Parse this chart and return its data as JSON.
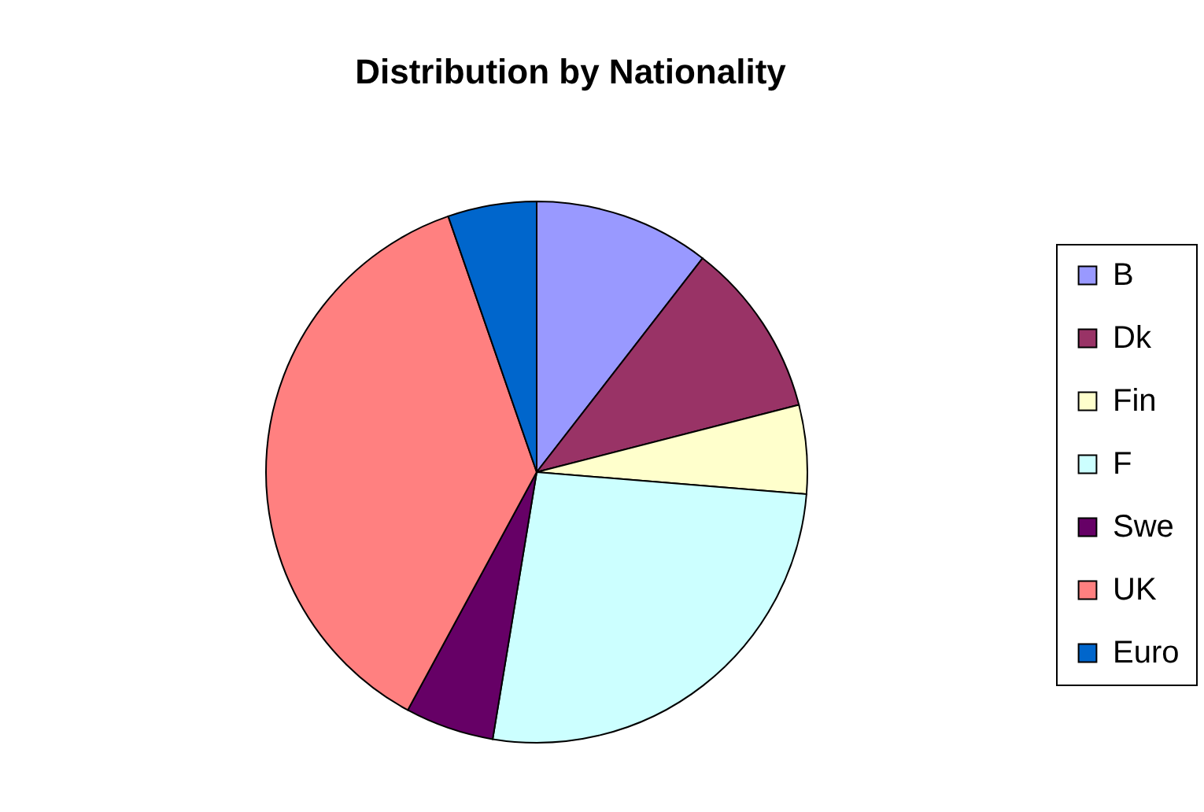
{
  "chart_data": {
    "type": "pie",
    "title": "Distribution by Nationality",
    "categories": [
      "B",
      "Dk",
      "Fin",
      "F",
      "Swe",
      "UK",
      "Euro"
    ],
    "values": [
      10.5,
      10.5,
      5.3,
      26.3,
      5.3,
      36.8,
      5.3
    ],
    "colors": [
      "#9999ff",
      "#993366",
      "#ffffcc",
      "#ccffff",
      "#660066",
      "#ff8080",
      "#0066cc"
    ],
    "legend": "right"
  }
}
